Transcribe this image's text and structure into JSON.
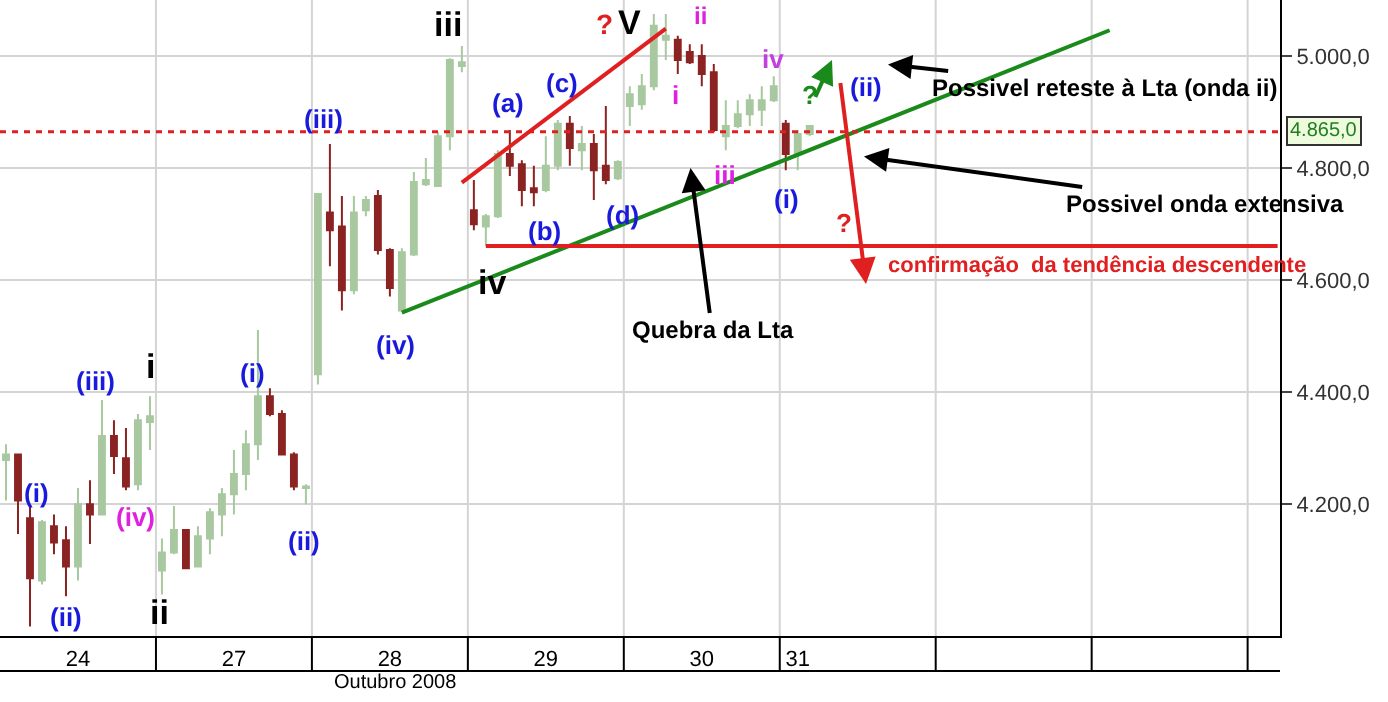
{
  "chart_data": {
    "type": "candlestick",
    "xlabel": "Outubro 2008",
    "categories": [
      null,
      null,
      null,
      null,
      null,
      null,
      "24",
      null,
      null,
      null,
      null,
      null,
      null,
      null,
      null,
      null,
      null,
      null,
      null,
      "27",
      null,
      null,
      null,
      null,
      null,
      null,
      null,
      null,
      null,
      null,
      null,
      null,
      "28",
      null,
      null,
      null,
      null,
      null,
      null,
      null,
      null,
      null,
      null,
      null,
      null,
      "29",
      null,
      null,
      null,
      null,
      null,
      null,
      null,
      null,
      null,
      null,
      null,
      null,
      "30",
      null,
      null,
      null,
      null,
      null,
      null,
      null,
      "31",
      null,
      null,
      null,
      null,
      null,
      null,
      null,
      null,
      null,
      null,
      null,
      null,
      null,
      null,
      null,
      null,
      null,
      null,
      null,
      null,
      null,
      null,
      null,
      null,
      null,
      null,
      null,
      null,
      null,
      null,
      null,
      null,
      null,
      null,
      null,
      null,
      null,
      null,
      null,
      null
    ],
    "ohlc": [
      [
        4279,
        4307,
        4207,
        4289
      ],
      [
        4289,
        4289,
        4147,
        4207
      ],
      [
        4175,
        4197,
        3982,
        4068
      ],
      [
        4064,
        4172,
        4057,
        4168
      ],
      [
        4161,
        4182,
        4111,
        4132
      ],
      [
        4136,
        4161,
        4036,
        4089
      ],
      [
        4089,
        4229,
        4064,
        4200
      ],
      [
        4200,
        4243,
        4129,
        4182
      ],
      [
        4182,
        4386,
        4182,
        4322
      ],
      [
        4322,
        4350,
        4254,
        4286
      ],
      [
        4282,
        4336,
        4225,
        4232
      ],
      [
        4236,
        4361,
        4225,
        4350
      ],
      [
        4347,
        4393,
        4297,
        4357
      ],
      [
        4082,
        4139,
        4039,
        4114
      ],
      [
        4114,
        4197,
        4111,
        4154
      ],
      [
        4154,
        4154,
        4086,
        4086
      ],
      [
        4089,
        4161,
        4089,
        4143
      ],
      [
        4139,
        4193,
        4111,
        4186
      ],
      [
        4182,
        4229,
        4143,
        4218
      ],
      [
        4218,
        4297,
        4182,
        4254
      ],
      [
        4254,
        4332,
        4225,
        4307
      ],
      [
        4307,
        4511,
        4279,
        4393
      ],
      [
        4393,
        4407,
        4357,
        4361
      ],
      [
        4361,
        4368,
        4289,
        4289
      ],
      [
        4289,
        4293,
        4225,
        4232
      ],
      [
        4229,
        4236,
        4200,
        4232
      ],
      [
        4432,
        4754,
        4414,
        4754
      ],
      [
        4721,
        4843,
        4625,
        4689
      ],
      [
        4696,
        4750,
        4546,
        4582
      ],
      [
        4582,
        4750,
        4575,
        4721
      ],
      [
        4725,
        4750,
        4714,
        4743
      ],
      [
        4750,
        4761,
        4646,
        4654
      ],
      [
        4654,
        4657,
        4571,
        4586
      ],
      [
        4546,
        4657,
        4543,
        4650
      ],
      [
        4646,
        4793,
        4643,
        4775
      ],
      [
        4771,
        4818,
        4768,
        4779
      ],
      [
        4768,
        4864,
        4768,
        4857
      ],
      [
        4857,
        4996,
        4832,
        4993
      ],
      [
        4982,
        5018,
        4971,
        4989
      ],
      [
        4725,
        4779,
        4689,
        4700
      ],
      [
        4696,
        4718,
        4661,
        4714
      ],
      [
        4714,
        4832,
        4711,
        4825
      ],
      [
        4825,
        4868,
        4786,
        4804
      ],
      [
        4807,
        4814,
        4732,
        4761
      ],
      [
        4764,
        4804,
        4732,
        4757
      ],
      [
        4761,
        4857,
        4757,
        4804
      ],
      [
        4804,
        4886,
        4796,
        4879
      ],
      [
        4879,
        4893,
        4804,
        4836
      ],
      [
        4832,
        4875,
        4796,
        4843
      ],
      [
        4843,
        4861,
        4743,
        4796
      ],
      [
        4804,
        4911,
        4771,
        4779
      ],
      [
        4782,
        4814,
        4779,
        4811
      ],
      [
        4911,
        4946,
        4875,
        4932
      ],
      [
        4914,
        4968,
        4904,
        4946
      ],
      [
        4946,
        5075,
        4939,
        5054
      ],
      [
        5029,
        5075,
        4993,
        5036
      ],
      [
        5029,
        5036,
        4968,
        4993
      ],
      [
        5007,
        5021,
        4986,
        4989
      ],
      [
        5000,
        5021,
        4946,
        4968
      ],
      [
        4971,
        4986,
        4864,
        4868
      ],
      [
        4857,
        4921,
        4832,
        4875
      ],
      [
        4875,
        4921,
        4871,
        4896
      ],
      [
        4896,
        4932,
        4875,
        4921
      ],
      [
        4904,
        4946,
        4875,
        4921
      ],
      [
        4921,
        4964,
        4918,
        4946
      ],
      [
        4879,
        4886,
        4796,
        4825
      ],
      [
        4825,
        4868,
        4796,
        4861
      ],
      [
        4861,
        4875,
        4857,
        4875
      ],
      null,
      null,
      null,
      null,
      null,
      null,
      null,
      null,
      null,
      null,
      null,
      null,
      null,
      null,
      null,
      null,
      null,
      null,
      null,
      null,
      null,
      null,
      null,
      null,
      null,
      null,
      null,
      null,
      null,
      null,
      null,
      null,
      null,
      null,
      null,
      null,
      null,
      null,
      null
    ],
    "colors": [
      "#a8c8a0",
      "#8b2323",
      "#8b2323",
      "#a8c8a0",
      "#8b2323",
      "#8b2323",
      "#a8c8a0",
      "#8b2323",
      "#a8c8a0",
      "#8b2323",
      "#8b2323",
      "#a8c8a0",
      "#a8c8a0",
      "#a8c8a0",
      "#a8c8a0",
      "#8b2323",
      "#a8c8a0",
      "#a8c8a0",
      "#a8c8a0",
      "#a8c8a0",
      "#a8c8a0",
      "#a8c8a0",
      "#8b2323",
      "#8b2323",
      "#8b2323",
      "#a8c8a0",
      "#a8c8a0",
      "#8b2323",
      "#8b2323",
      "#a8c8a0",
      "#a8c8a0",
      "#8b2323",
      "#8b2323",
      "#a8c8a0",
      "#a8c8a0",
      "#a8c8a0",
      "#a8c8a0",
      "#a8c8a0",
      "#a8c8a0",
      "#8b2323",
      "#a8c8a0",
      "#a8c8a0",
      "#8b2323",
      "#8b2323",
      "#8b2323",
      "#a8c8a0",
      "#a8c8a0",
      "#8b2323",
      "#a8c8a0",
      "#8b2323",
      "#8b2323",
      "#a8c8a0",
      "#a8c8a0",
      "#a8c8a0",
      "#a8c8a0",
      "#a8c8a0",
      "#8b2323",
      "#8b2323",
      "#8b2323",
      "#8b2323",
      "#a8c8a0",
      "#a8c8a0",
      "#a8c8a0",
      "#a8c8a0",
      "#a8c8a0",
      "#8b2323",
      "#a8c8a0",
      "#a8c8a0",
      null,
      null,
      null,
      null,
      null,
      null,
      null,
      null,
      null,
      null,
      null,
      null,
      null,
      null,
      null,
      null,
      null,
      null,
      null,
      null,
      null,
      null,
      null,
      null,
      null,
      null,
      null,
      null,
      null,
      null,
      null,
      null,
      null,
      null,
      null,
      null,
      null,
      null,
      null
    ],
    "series": [
      {
        "type": "line",
        "color": "#1a8a1a",
        "values": [
          null,
          null,
          null,
          null,
          null,
          null,
          null,
          null,
          null,
          null,
          null,
          null,
          null,
          null,
          null,
          null,
          null,
          null,
          null,
          null,
          null,
          null,
          null,
          null,
          null,
          null,
          null,
          null,
          null,
          null,
          null,
          null,
          null,
          4542,
          null,
          null,
          null,
          null,
          null,
          null,
          null,
          null,
          null,
          null,
          null,
          null,
          null,
          null,
          null,
          null,
          null,
          null,
          null,
          null,
          null,
          null,
          null,
          null,
          null,
          null,
          null,
          null,
          null,
          null,
          null,
          null,
          null,
          null,
          null,
          null,
          null,
          null,
          null,
          null,
          null,
          null,
          null,
          null,
          null,
          null,
          null,
          null,
          null,
          null,
          null,
          null,
          null,
          null,
          null,
          null,
          null,
          null,
          5046,
          null,
          null,
          null,
          null,
          null,
          null,
          null,
          null,
          null,
          null,
          null,
          null,
          null,
          null
        ]
      },
      {
        "type": "line",
        "color": "#e02020",
        "values": [
          null,
          null,
          null,
          null,
          null,
          null,
          null,
          null,
          null,
          null,
          null,
          null,
          null,
          null,
          null,
          null,
          null,
          null,
          null,
          null,
          null,
          null,
          null,
          null,
          null,
          null,
          null,
          null,
          null,
          null,
          null,
          null,
          null,
          null,
          null,
          null,
          null,
          null,
          4774,
          null,
          null,
          null,
          null,
          null,
          null,
          null,
          null,
          null,
          null,
          null,
          null,
          null,
          null,
          null,
          null,
          5049,
          null,
          null,
          null,
          null,
          null,
          null,
          null,
          null,
          null,
          null,
          null,
          null,
          null,
          null,
          null,
          null,
          null,
          null,
          null,
          null,
          null,
          null,
          null,
          null,
          null,
          null,
          null,
          null,
          null,
          null,
          null,
          null,
          null,
          null,
          null,
          null,
          null,
          null,
          null,
          null,
          null,
          null,
          null,
          null,
          null,
          null,
          null,
          null,
          null,
          null,
          null
        ]
      },
      {
        "type": "line",
        "color": "#e02020",
        "values": [
          null,
          null,
          null,
          null,
          null,
          null,
          null,
          null,
          null,
          null,
          null,
          null,
          null,
          null,
          null,
          null,
          null,
          null,
          null,
          null,
          null,
          null,
          null,
          null,
          null,
          null,
          null,
          null,
          null,
          null,
          null,
          null,
          null,
          null,
          null,
          null,
          null,
          null,
          null,
          null,
          4661,
          null,
          null,
          null,
          null,
          null,
          null,
          null,
          null,
          null,
          null,
          null,
          null,
          null,
          null,
          null,
          null,
          null,
          null,
          null,
          null,
          null,
          null,
          null,
          null,
          null,
          null,
          null,
          null,
          null,
          null,
          null,
          null,
          null,
          null,
          null,
          null,
          null,
          null,
          null,
          null,
          null,
          null,
          null,
          null,
          null,
          null,
          null,
          null,
          null,
          null,
          null,
          null,
          null,
          null,
          null,
          null,
          null,
          null,
          null,
          null,
          null,
          null,
          null,
          null,
          null,
          4661
        ]
      }
    ],
    "ylim": [
      3965,
      5100
    ],
    "yticks": [
      {
        "value": 4200,
        "label": "4.200,0"
      },
      {
        "value": 4400,
        "label": "4.400,0"
      },
      {
        "value": 4600,
        "label": "4.600,0"
      },
      {
        "value": 4800,
        "label": "4.800,0"
      },
      {
        "value": 5000,
        "label": "5.000,0"
      }
    ],
    "grid": true,
    "ref_lines": [
      {
        "axis": "y",
        "value": 4865,
        "label": "4.865,0",
        "color": "#e02020",
        "line_style": "dotted"
      }
    ],
    "annotations": [
      "(i)",
      "(ii)",
      "(iii)",
      "(iv)",
      "i",
      "ii",
      "(i)",
      "(ii)",
      "(iii)",
      "(iv)",
      "iii",
      "iv",
      "(a)",
      "(b)",
      "(c)",
      "(d)",
      "?",
      "V",
      "i",
      "ii",
      "iii",
      "iv",
      "(i)",
      "(ii)",
      "?",
      "?",
      "Possivel reteste à Lta (onda ii)",
      "Possivel onda extensiva",
      "Quebra da Lta",
      "confirmação  da tendência descendente"
    ]
  }
}
